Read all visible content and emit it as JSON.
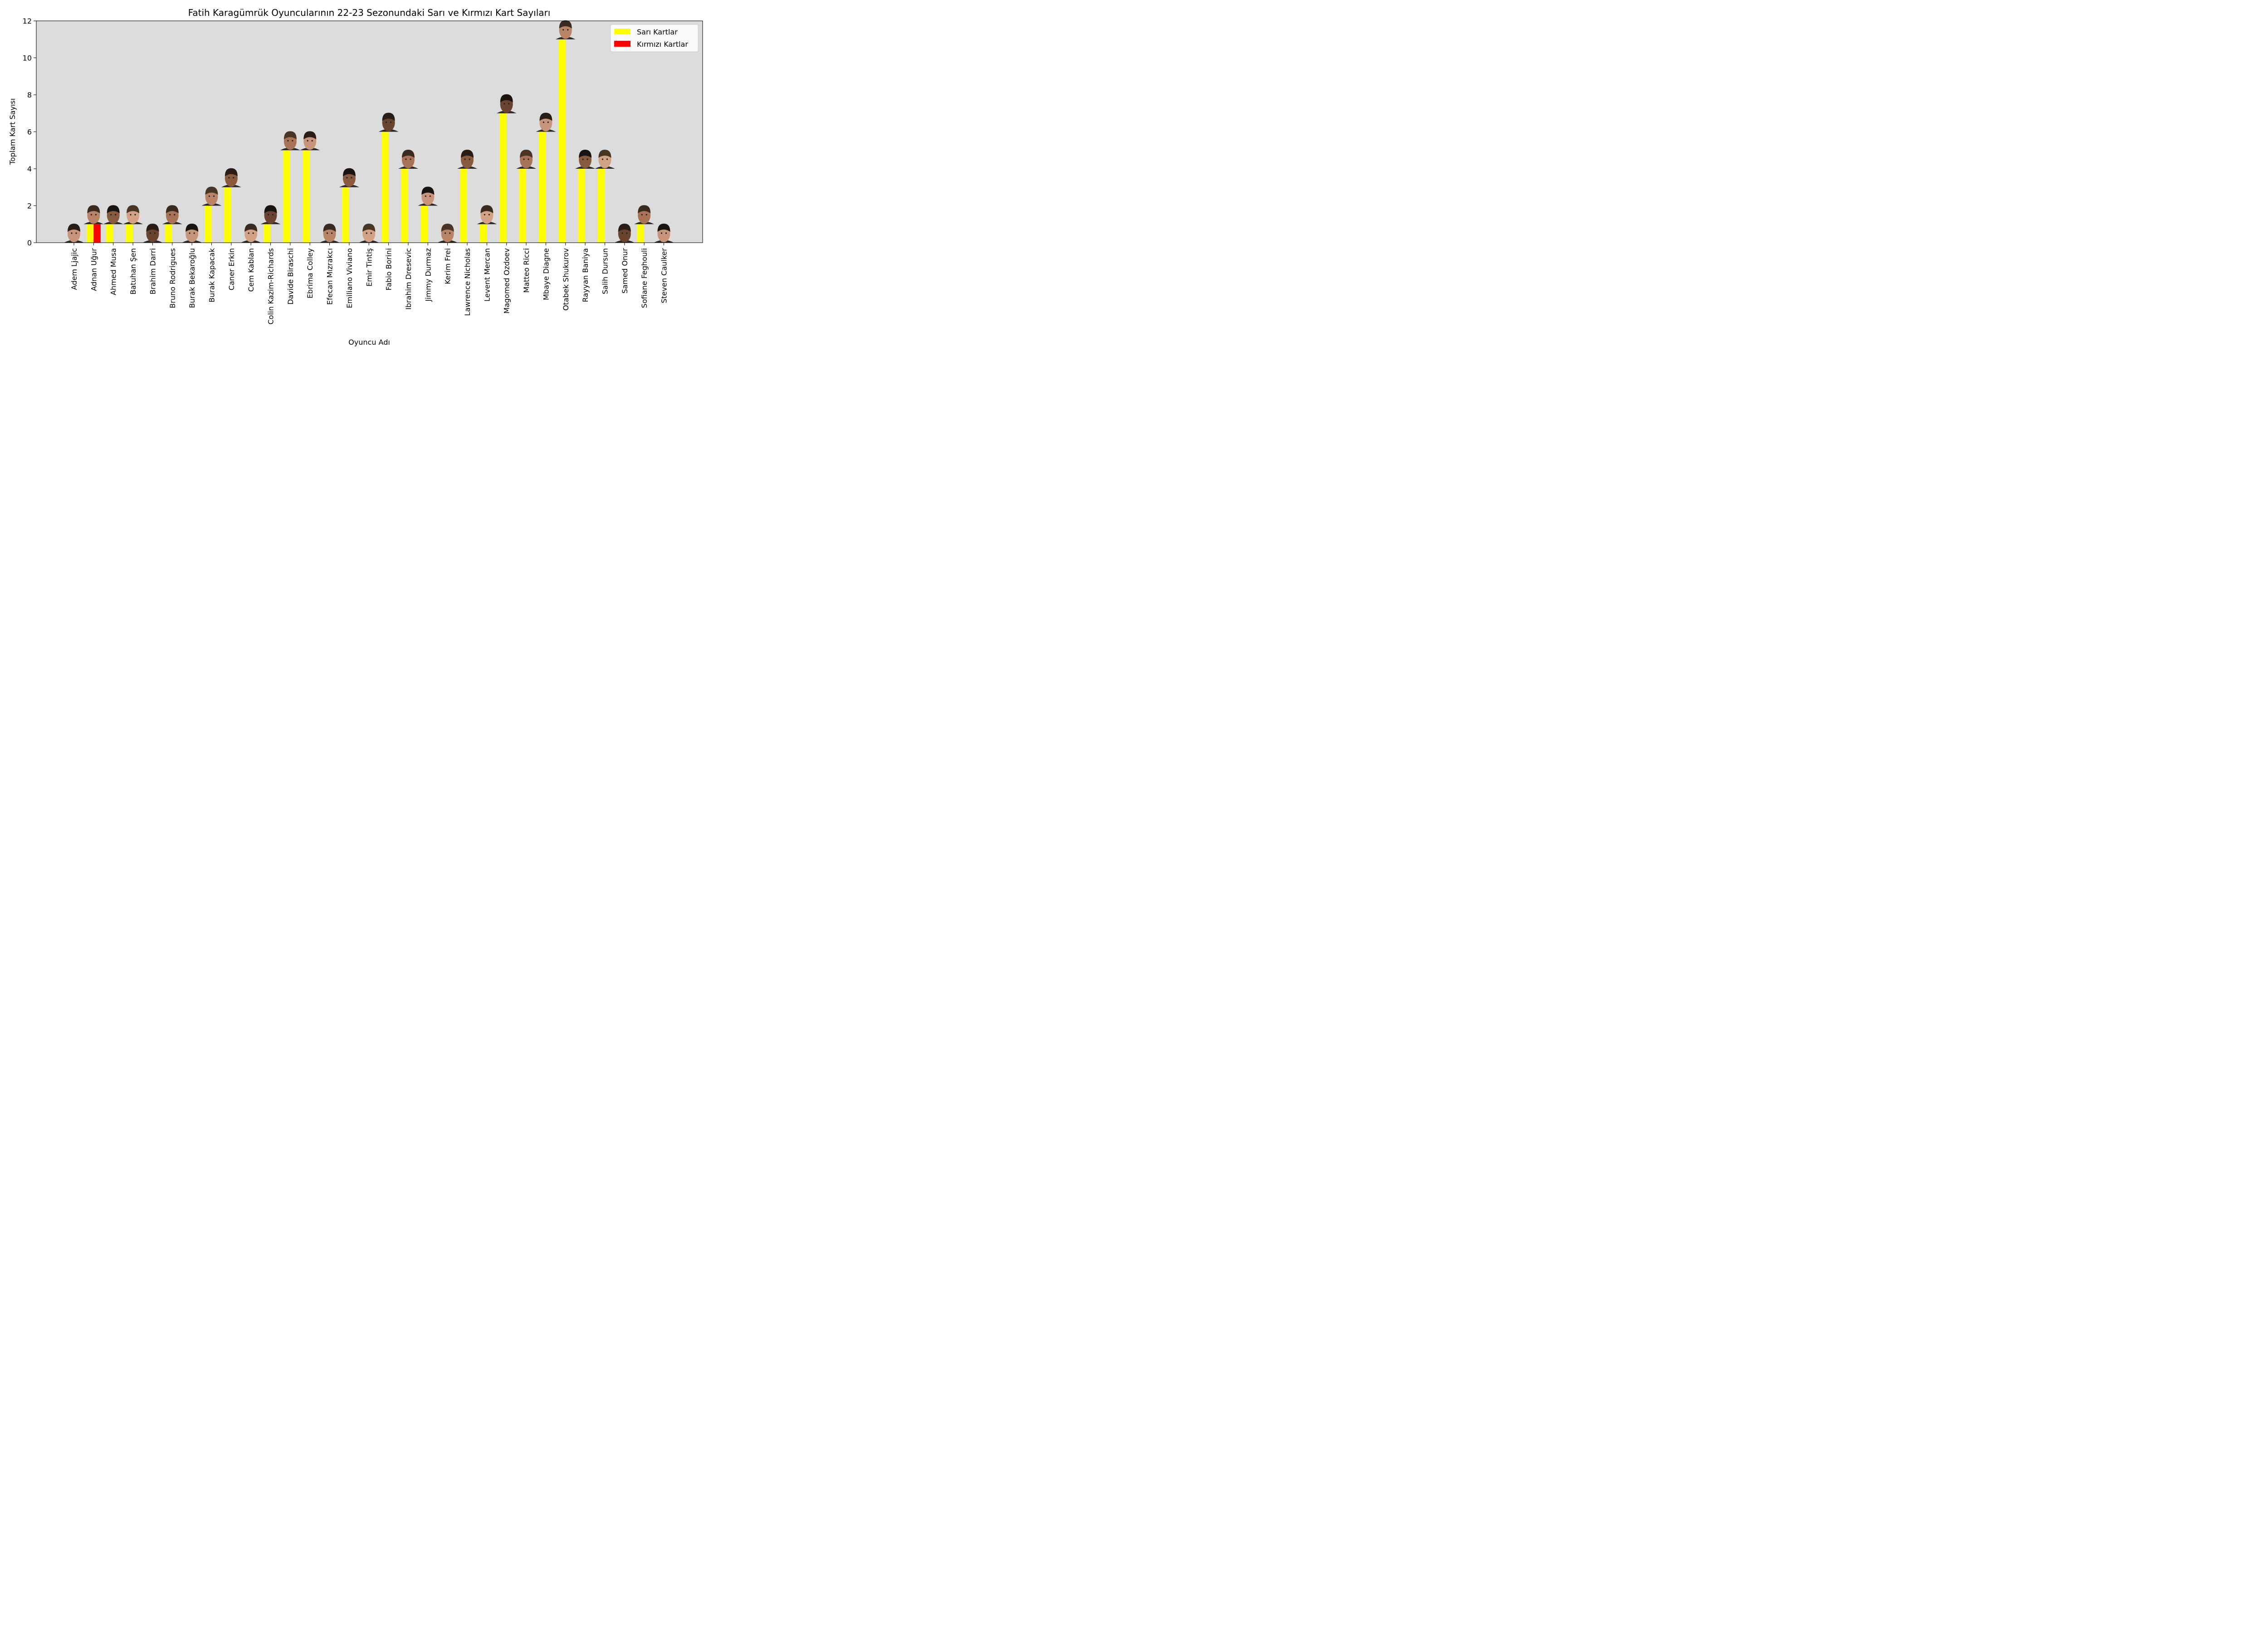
{
  "chart_data": {
    "type": "bar",
    "title": "Fatih Karagümrük Oyuncularının 22-23 Sezonundaki Sarı ve Kırmızı Kart Sayıları",
    "xlabel": "Oyuncu Adı",
    "ylabel": "Toplam Kart Sayısı",
    "ylim": [
      0,
      12
    ],
    "yticks": [
      0,
      2,
      4,
      6,
      8,
      10,
      12
    ],
    "grid": false,
    "legend_position": "top-right",
    "background_color": "#dcdcdc",
    "categories": [
      "Adem Ljajic",
      "Adnan Uğur",
      "Ahmed Musa",
      "Batuhan Şen",
      "Brahim Darri",
      "Bruno Rodrigues",
      "Burak Bekaroğlu",
      "Burak Kapacak",
      "Caner Erkin",
      "Cem Kablan",
      "Colin Kazim-Richards",
      "Davide Biraschi",
      "Ebrima Colley",
      "Efecan Mızrakcı",
      "Emiliano Viviano",
      "Emir Tintiş",
      "Fabio Borini",
      "Ibrahim Dresevic",
      "Jimmy Durmaz",
      "Kerim Frei",
      "Lawrence Nicholas",
      "Levent Mercan",
      "Magomed Ozdoev",
      "Matteo Ricci",
      "Mbaye Diagne",
      "Otabek Shukurov",
      "Rayyan Baniya",
      "Salih Dursun",
      "Samed Onur",
      "Sofiane Feghouli",
      "Steven Caulker"
    ],
    "series": [
      {
        "name": "Sarı Kartlar",
        "color": "#ffff00",
        "values": [
          0,
          1,
          1,
          1,
          0,
          1,
          0,
          2,
          3,
          0,
          1,
          5,
          5,
          0,
          3,
          0,
          6,
          4,
          2,
          0,
          4,
          1,
          7,
          4,
          6,
          11,
          4,
          4,
          0,
          1,
          0
        ]
      },
      {
        "name": "Kırmızı Kartlar",
        "color": "#ff0000",
        "values": [
          0,
          1,
          0,
          0,
          0,
          0,
          0,
          0,
          0,
          0,
          0,
          0,
          0,
          0,
          0,
          0,
          0,
          0,
          0,
          0,
          0,
          0,
          0,
          0,
          0,
          0,
          0,
          0,
          0,
          0,
          0
        ]
      }
    ],
    "annotations": "player-face-icon above each bar"
  }
}
